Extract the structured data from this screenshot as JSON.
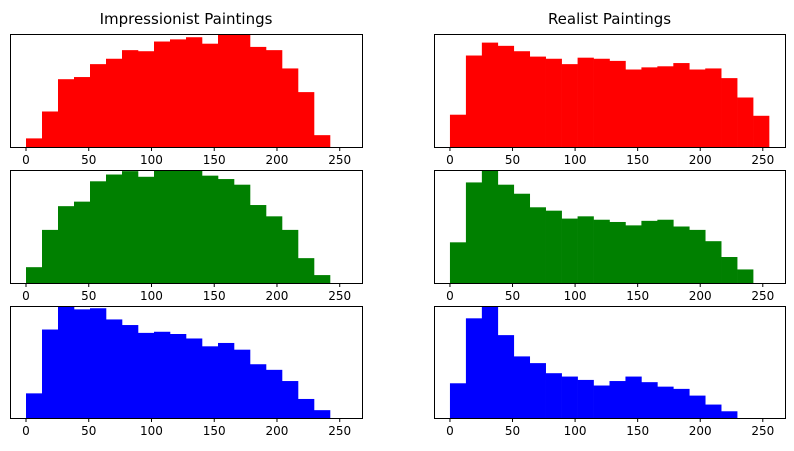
{
  "chart_data": [
    {
      "type": "bar",
      "panel": "top-left",
      "title": "Impressionist Paintings",
      "xlabel": "",
      "ylabel": "",
      "xticks": [
        0,
        50,
        100,
        150,
        200,
        250
      ],
      "xlim": [
        -12.75,
        267.75
      ],
      "ylim": [
        0,
        1.05
      ],
      "yticks_visible": false,
      "bin_width": 12.75,
      "bin_edges_start": 0,
      "color": "#ff0000",
      "values": [
        0.08,
        0.33,
        0.63,
        0.65,
        0.77,
        0.82,
        0.9,
        0.89,
        0.98,
        1.0,
        1.02,
        0.96,
        1.06,
        1.05,
        0.93,
        0.9,
        0.73,
        0.51,
        0.11
      ]
    },
    {
      "type": "bar",
      "panel": "top-right",
      "title": "Realist Paintings",
      "xlabel": "",
      "ylabel": "",
      "xticks": [
        0,
        50,
        100,
        150,
        200,
        250
      ],
      "xlim": [
        -12.75,
        267.75
      ],
      "ylim": [
        0,
        1.05
      ],
      "yticks_visible": false,
      "bin_width": 12.75,
      "bin_edges_start": 0,
      "color": "#ff0000",
      "values": [
        0.3,
        0.85,
        0.97,
        0.94,
        0.89,
        0.84,
        0.82,
        0.77,
        0.83,
        0.82,
        0.8,
        0.72,
        0.74,
        0.75,
        0.78,
        0.72,
        0.73,
        0.64,
        0.46,
        0.29
      ]
    },
    {
      "type": "bar",
      "panel": "middle-left",
      "xticks": [
        0,
        50,
        100,
        150,
        200,
        250
      ],
      "xlim": [
        -12.75,
        267.75
      ],
      "ylim": [
        0,
        1.0
      ],
      "yticks_visible": false,
      "bin_width": 12.75,
      "bin_edges_start": 0,
      "color": "#008000",
      "values": [
        0.14,
        0.47,
        0.68,
        0.72,
        0.9,
        0.96,
        0.99,
        0.94,
        1.0,
        1.0,
        1.0,
        0.95,
        0.92,
        0.87,
        0.69,
        0.59,
        0.47,
        0.22,
        0.07
      ]
    },
    {
      "type": "bar",
      "panel": "middle-right",
      "xticks": [
        0,
        50,
        100,
        150,
        200,
        250
      ],
      "xlim": [
        -12.75,
        267.75
      ],
      "ylim": [
        0,
        1.0
      ],
      "yticks_visible": false,
      "bin_width": 12.75,
      "bin_edges_start": 0,
      "color": "#008000",
      "values": [
        0.36,
        0.89,
        1.0,
        0.87,
        0.79,
        0.67,
        0.64,
        0.57,
        0.59,
        0.56,
        0.54,
        0.51,
        0.55,
        0.56,
        0.5,
        0.47,
        0.37,
        0.23,
        0.12
      ]
    },
    {
      "type": "bar",
      "panel": "bottom-left",
      "xticks": [
        0,
        50,
        100,
        150,
        200,
        250
      ],
      "xlim": [
        -12.75,
        267.75
      ],
      "ylim": [
        0,
        1.0
      ],
      "yticks_visible": false,
      "bin_width": 12.75,
      "bin_edges_start": 0,
      "color": "#0000ff",
      "values": [
        0.22,
        0.79,
        1.0,
        0.97,
        0.98,
        0.88,
        0.83,
        0.76,
        0.77,
        0.75,
        0.71,
        0.64,
        0.67,
        0.61,
        0.48,
        0.43,
        0.33,
        0.17,
        0.07
      ]
    },
    {
      "type": "bar",
      "panel": "bottom-right",
      "xticks": [
        0,
        50,
        100,
        150,
        200,
        250
      ],
      "xlim": [
        -12.75,
        267.75
      ],
      "ylim": [
        0,
        1.0
      ],
      "yticks_visible": false,
      "bin_width": 12.75,
      "bin_edges_start": 0,
      "color": "#0000ff",
      "values": [
        0.31,
        0.89,
        1.0,
        0.74,
        0.55,
        0.49,
        0.4,
        0.37,
        0.34,
        0.29,
        0.33,
        0.37,
        0.32,
        0.28,
        0.26,
        0.2,
        0.12,
        0.06
      ]
    }
  ]
}
